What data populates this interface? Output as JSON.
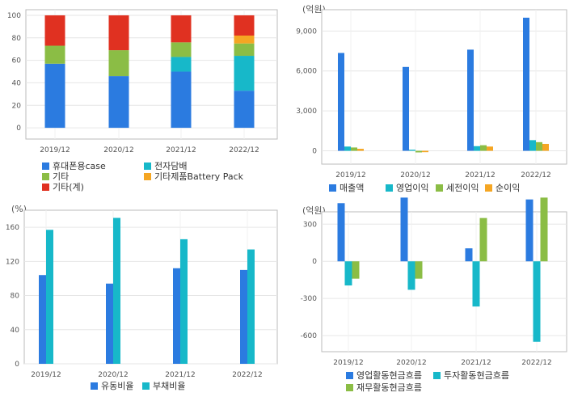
{
  "chart_data": [
    {
      "type": "bar",
      "stacked": true,
      "unit": "",
      "categories": [
        "2019/12",
        "2020/12",
        "2021/12",
        "2022/12"
      ],
      "ylim": [
        -10,
        105
      ],
      "yticks": [
        0,
        20,
        40,
        60,
        80,
        100
      ],
      "grid": true,
      "legend_position": "bottom",
      "series": [
        {
          "name": "휴대폰용case",
          "color": "#2b7be0",
          "values": [
            57,
            46,
            50,
            33
          ]
        },
        {
          "name": "전자담배",
          "color": "#17b8c9",
          "values": [
            0,
            0,
            13,
            31
          ]
        },
        {
          "name": "기타",
          "color": "#8bbd45",
          "values": [
            16,
            23,
            13,
            11
          ]
        },
        {
          "name": "기타제품Battery Pack",
          "color": "#f5a623",
          "values": [
            0,
            0,
            0,
            7
          ]
        },
        {
          "name": "기타(계)",
          "color": "#e03121",
          "values": [
            27,
            31,
            24,
            18
          ]
        }
      ]
    },
    {
      "type": "bar",
      "unit": "(억원)",
      "categories": [
        "2019/12",
        "2020/12",
        "2021/12",
        "2022/12"
      ],
      "ylim": [
        -1000,
        10600
      ],
      "yticks": [
        0,
        3000,
        6000,
        9000
      ],
      "ytick_labels": [
        "0",
        "3,000",
        "6,000",
        "9,000"
      ],
      "grid": true,
      "legend_position": "bottom",
      "series": [
        {
          "name": "매출액",
          "color": "#2b7be0",
          "values": [
            7350,
            6300,
            7600,
            10000
          ]
        },
        {
          "name": "영업이익",
          "color": "#17b8c9",
          "values": [
            320,
            80,
            350,
            800
          ]
        },
        {
          "name": "세전이익",
          "color": "#8bbd45",
          "values": [
            250,
            -120,
            420,
            650
          ]
        },
        {
          "name": "순이익",
          "color": "#f5a623",
          "values": [
            150,
            -100,
            320,
            520
          ]
        }
      ]
    },
    {
      "type": "bar",
      "unit": "(%)",
      "categories": [
        "2019/12",
        "2020/12",
        "2021/12",
        "2022/12"
      ],
      "ylim": [
        0,
        180
      ],
      "yticks": [
        0,
        40,
        80,
        120,
        160
      ],
      "grid": true,
      "legend_position": "bottom",
      "series": [
        {
          "name": "유동비율",
          "color": "#2b7be0",
          "values": [
            104,
            94,
            112,
            110
          ]
        },
        {
          "name": "부채비율",
          "color": "#17b8c9",
          "values": [
            157,
            171,
            146,
            134
          ]
        }
      ]
    },
    {
      "type": "bar",
      "unit": "(억원)",
      "categories": [
        "2019/12",
        "2020/12",
        "2021/12",
        "2022/12"
      ],
      "ylim": [
        -730,
        400
      ],
      "yticks": [
        -600,
        -300,
        0,
        300
      ],
      "grid": true,
      "legend_position": "bottom",
      "series": [
        {
          "name": "영업활동현금흐름",
          "color": "#2b7be0",
          "values": [
            470,
            515,
            105,
            500
          ]
        },
        {
          "name": "투자활동현금흐름",
          "color": "#17b8c9",
          "values": [
            -195,
            -230,
            -365,
            -650
          ]
        },
        {
          "name": "재무활동현금흐름",
          "color": "#8bbd45",
          "values": [
            -140,
            -140,
            350,
            515
          ]
        }
      ]
    }
  ]
}
